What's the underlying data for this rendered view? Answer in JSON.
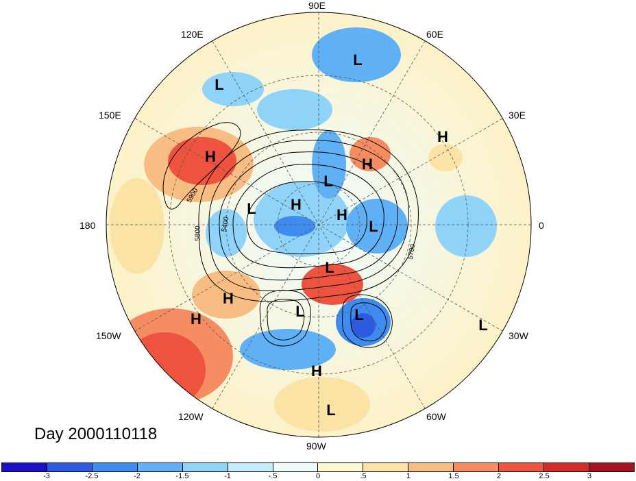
{
  "title": "Day 2000110118",
  "longitude_labels": {
    "e90": "90E",
    "e60": "60E",
    "e30": "30E",
    "zero": "0",
    "w30": "30W",
    "w60": "60W",
    "w90": "90W",
    "w120": "120W",
    "w150": "150W",
    "d180": "180",
    "e150": "150E",
    "e120": "120E"
  },
  "contour_labels": [
    "5900",
    "5800",
    "5400",
    "5700"
  ],
  "pressure_centers": [
    {
      "type": "L"
    },
    {
      "type": "L"
    },
    {
      "type": "H"
    },
    {
      "type": "H"
    },
    {
      "type": "H"
    },
    {
      "type": "L"
    },
    {
      "type": "H"
    },
    {
      "type": "L"
    },
    {
      "type": "H"
    },
    {
      "type": "L"
    },
    {
      "type": "L"
    },
    {
      "type": "H"
    },
    {
      "type": "H"
    },
    {
      "type": "L"
    },
    {
      "type": "L"
    },
    {
      "type": "L"
    },
    {
      "type": "H"
    },
    {
      "type": "L"
    }
  ],
  "colorbar": {
    "labels": [
      "-3",
      "-2.5",
      "-2",
      "-1.5",
      "-1",
      "-.5",
      "0",
      ".5",
      "1",
      "1.5",
      "2",
      "2.5",
      "3"
    ],
    "colors": [
      "#1b10c8",
      "#2c5be0",
      "#3f8cf0",
      "#5fb0f5",
      "#8fd3f8",
      "#c3ecfb",
      "#eefcfd",
      "#fdf8d2",
      "#fbe3a6",
      "#f8bd82",
      "#f58c62",
      "#ee5340",
      "#d32a2a",
      "#a51222"
    ]
  }
}
